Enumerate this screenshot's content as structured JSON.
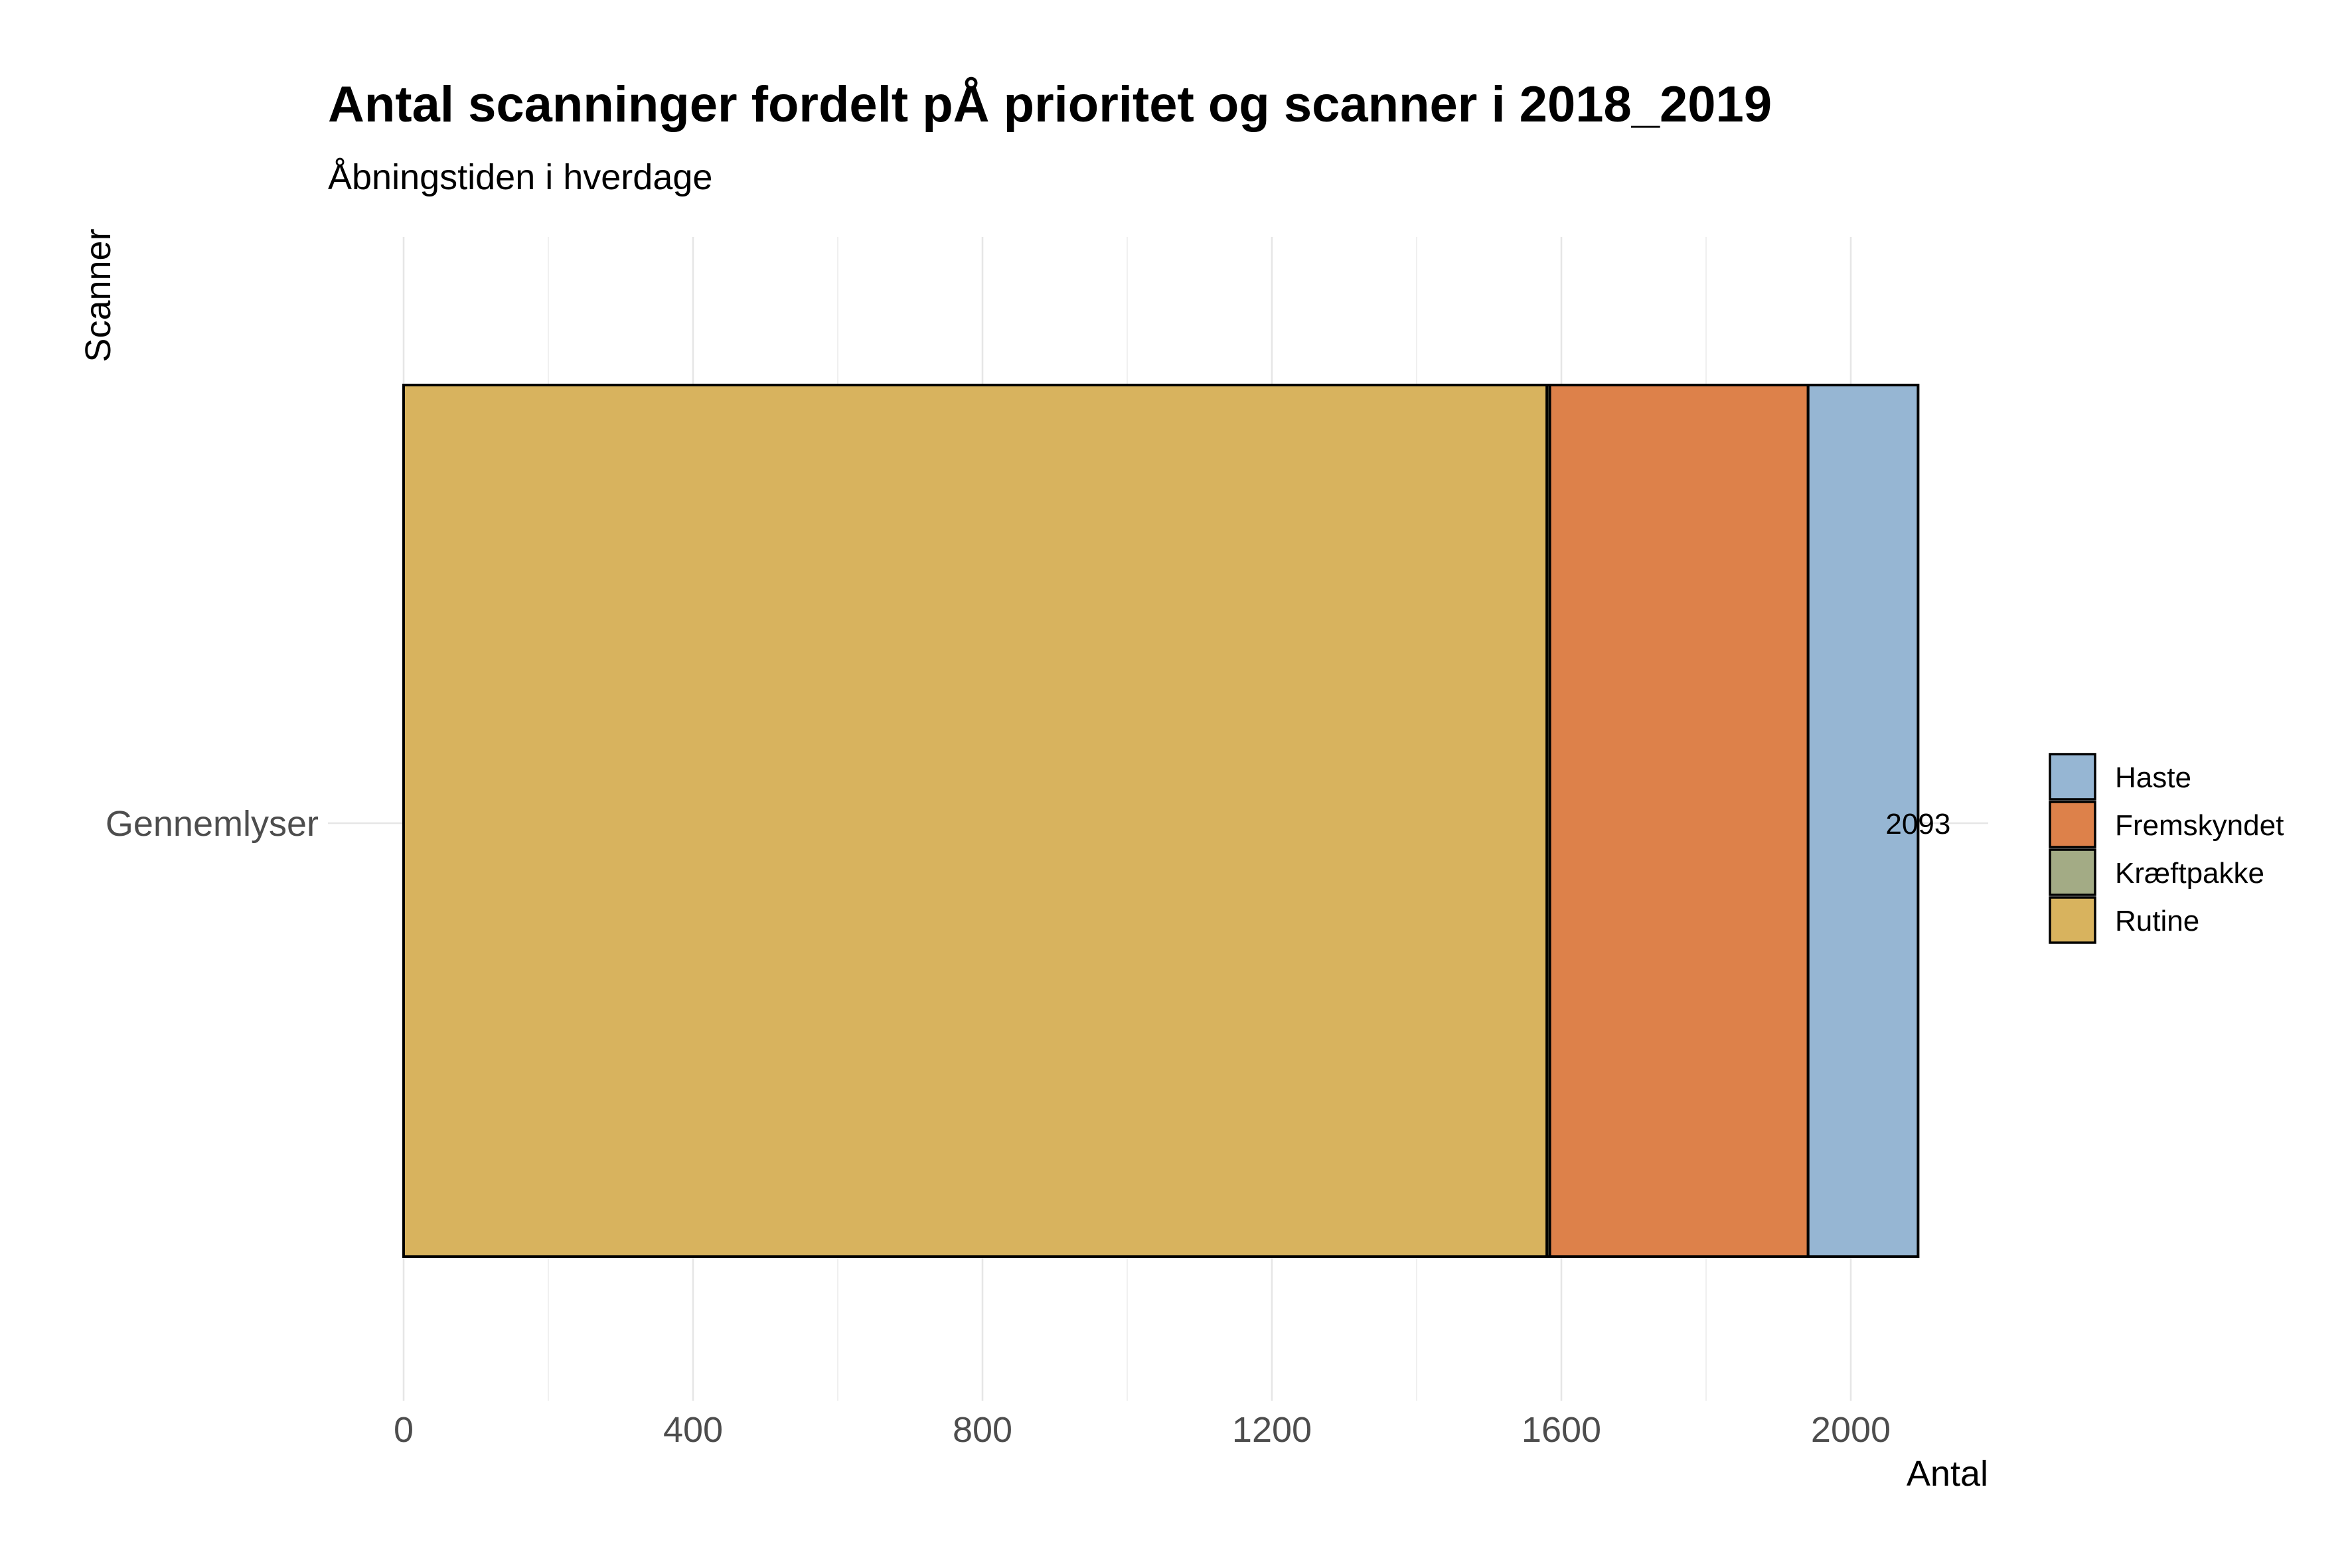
{
  "chart_data": {
    "type": "bar",
    "orientation": "horizontal",
    "stacked": true,
    "title": "Antal scanninger fordelt pÅ prioritet og scanner i 2018_2019",
    "subtitle": "Åbningstiden i hverdage",
    "xlabel": "Antal",
    "ylabel": "Scanner",
    "categories": [
      "Gennemlyser"
    ],
    "series": [
      {
        "name": "Rutine",
        "values": [
          1580
        ],
        "color": "#D8B35E"
      },
      {
        "name": "Kræftpakke",
        "values": [
          4
        ],
        "color": "#A3AB85"
      },
      {
        "name": "Fremskyndet",
        "values": [
          357
        ],
        "color": "#DD814A"
      },
      {
        "name": "Haste",
        "values": [
          152
        ],
        "color": "#96B6D3"
      }
    ],
    "totals": [
      2093
    ],
    "total_labels": [
      "2093"
    ],
    "xlim": [
      0,
      2200
    ],
    "x_ticks": [
      0,
      400,
      800,
      1200,
      1600,
      2000
    ],
    "x_tick_labels": [
      "0",
      "400",
      "800",
      "1200",
      "1600",
      "2000"
    ],
    "legend": {
      "placement": "right",
      "order": [
        "Haste",
        "Fremskyndet",
        "Kræftpakke",
        "Rutine"
      ]
    },
    "grid": true
  }
}
